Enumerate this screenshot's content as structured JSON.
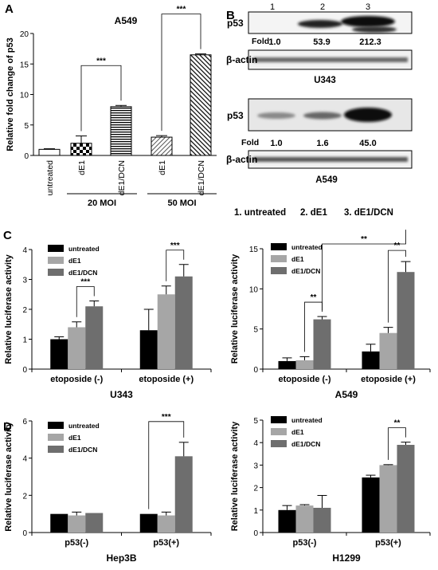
{
  "panel_labels": [
    "A",
    "B",
    "C",
    "D"
  ],
  "chart_data": [
    {
      "id": "A",
      "type": "bar",
      "title": "A549",
      "ylabel": "Relative fold change of p53",
      "ylim": [
        0,
        20
      ],
      "yticks": [
        0,
        5,
        10,
        15,
        20
      ],
      "categories": [
        "untreated",
        "dE1",
        "dE1/DCN",
        "dE1",
        "dE1/DCN"
      ],
      "values": [
        1.0,
        2.0,
        8.0,
        3.0,
        16.5
      ],
      "errors": [
        0.1,
        1.2,
        0.2,
        0.25,
        0.15
      ],
      "fills": [
        "white",
        "check",
        "hlines",
        "hatch-light",
        "hatch"
      ],
      "groups": [
        {
          "label": "20 MOI",
          "from": 1,
          "to": 2
        },
        {
          "label": "50 MOI",
          "from": 3,
          "to": 4
        }
      ],
      "significance": [
        {
          "from": 1,
          "to": 2,
          "label": "***"
        },
        {
          "from": 3,
          "to": 4,
          "label": "***"
        }
      ]
    },
    {
      "id": "C-U343",
      "type": "bar",
      "title": "U343",
      "ylabel": "Relative luciferase activity",
      "ylim": [
        0,
        4
      ],
      "yticks": [
        0,
        1,
        2,
        3,
        4
      ],
      "categories": [
        "etoposide (-)",
        "etoposide (+)"
      ],
      "series": [
        {
          "name": "untreated",
          "color": "#000000",
          "values": [
            1.0,
            1.3
          ],
          "errors": [
            0.08,
            0.7
          ]
        },
        {
          "name": "dE1",
          "color": "#a6a6a6",
          "values": [
            1.4,
            2.5
          ],
          "errors": [
            0.18,
            0.28
          ]
        },
        {
          "name": "dE1/DCN",
          "color": "#6e6e6e",
          "values": [
            2.1,
            3.1
          ],
          "errors": [
            0.18,
            0.4
          ]
        }
      ],
      "significance": [
        {
          "group": 0,
          "from": 1,
          "to": 2,
          "label": "***"
        },
        {
          "group": 1,
          "from": 1,
          "to": 2,
          "label": "***"
        }
      ],
      "legend": "top-left"
    },
    {
      "id": "C-A549",
      "type": "bar",
      "title": "A549",
      "ylabel": "Relative luciferase activity",
      "ylim": [
        0,
        15
      ],
      "yticks": [
        0,
        5,
        10,
        15
      ],
      "categories": [
        "etoposide (-)",
        "etoposide (+)"
      ],
      "series": [
        {
          "name": "untreated",
          "color": "#000000",
          "values": [
            1.0,
            2.2
          ],
          "errors": [
            0.4,
            0.9
          ]
        },
        {
          "name": "dE1",
          "color": "#a6a6a6",
          "values": [
            1.1,
            4.5
          ],
          "errors": [
            0.45,
            0.7
          ]
        },
        {
          "name": "dE1/DCN",
          "color": "#6e6e6e",
          "values": [
            6.2,
            12.1
          ],
          "errors": [
            0.35,
            1.3
          ]
        }
      ],
      "significance": [
        {
          "group": 0,
          "from": 1,
          "to": 2,
          "label": "**"
        },
        {
          "group": 1,
          "from": 1,
          "to": 2,
          "label": "**"
        },
        {
          "cross": true,
          "label": "**"
        }
      ],
      "legend": "top-left"
    },
    {
      "id": "D-Hep3B",
      "type": "bar",
      "title": "Hep3B",
      "ylabel": "Relative luciferase activity",
      "ylim": [
        0,
        6
      ],
      "yticks": [
        0,
        2,
        4,
        6
      ],
      "categories": [
        "p53(-)",
        "p53(+)"
      ],
      "series": [
        {
          "name": "untreated",
          "color": "#000000",
          "values": [
            1.0,
            1.0
          ],
          "errors": [
            0,
            0
          ]
        },
        {
          "name": "dE1",
          "color": "#a6a6a6",
          "values": [
            0.92,
            0.92
          ],
          "errors": [
            0.18,
            0.18
          ]
        },
        {
          "name": "dE1/DCN",
          "color": "#6e6e6e",
          "values": [
            1.05,
            4.1
          ],
          "errors": [
            0,
            0.75
          ]
        }
      ],
      "significance": [
        {
          "group": 1,
          "from": 0,
          "to": 2,
          "label": "***"
        }
      ],
      "legend": "top-left"
    },
    {
      "id": "D-H1299",
      "type": "bar",
      "title": "H1299",
      "ylabel": "Relative luciferase activity",
      "ylim": [
        0,
        5
      ],
      "yticks": [
        0,
        1,
        2,
        3,
        4,
        5
      ],
      "categories": [
        "p53(-)",
        "p53(+)"
      ],
      "series": [
        {
          "name": "untreated",
          "color": "#000000",
          "values": [
            1.0,
            2.45
          ],
          "errors": [
            0.2,
            0.1
          ]
        },
        {
          "name": "dE1",
          "color": "#a6a6a6",
          "values": [
            1.2,
            3.0
          ],
          "errors": [
            0.04,
            0.02
          ]
        },
        {
          "name": "dE1/DCN",
          "color": "#6e6e6e",
          "values": [
            1.1,
            3.9
          ],
          "errors": [
            0.55,
            0.12
          ]
        }
      ],
      "significance": [
        {
          "group": 1,
          "from": 1,
          "to": 2,
          "label": "**"
        }
      ],
      "legend": "top-left"
    }
  ],
  "western_blots": {
    "lane_numbers": [
      "1",
      "2",
      "3"
    ],
    "u343": {
      "title": "U343",
      "protein": "p53",
      "fold_label": "Fold",
      "folds": [
        "1.0",
        "53.9",
        "212.3"
      ],
      "control": "β-actin"
    },
    "a549": {
      "title": "A549",
      "protein": "p53",
      "fold_label": "Fold",
      "folds": [
        "1.0",
        "1.6",
        "45.0"
      ],
      "control": "β-actin"
    },
    "lane_legend": [
      "1. untreated",
      "2. dE1",
      "3. dE1/DCN"
    ]
  }
}
